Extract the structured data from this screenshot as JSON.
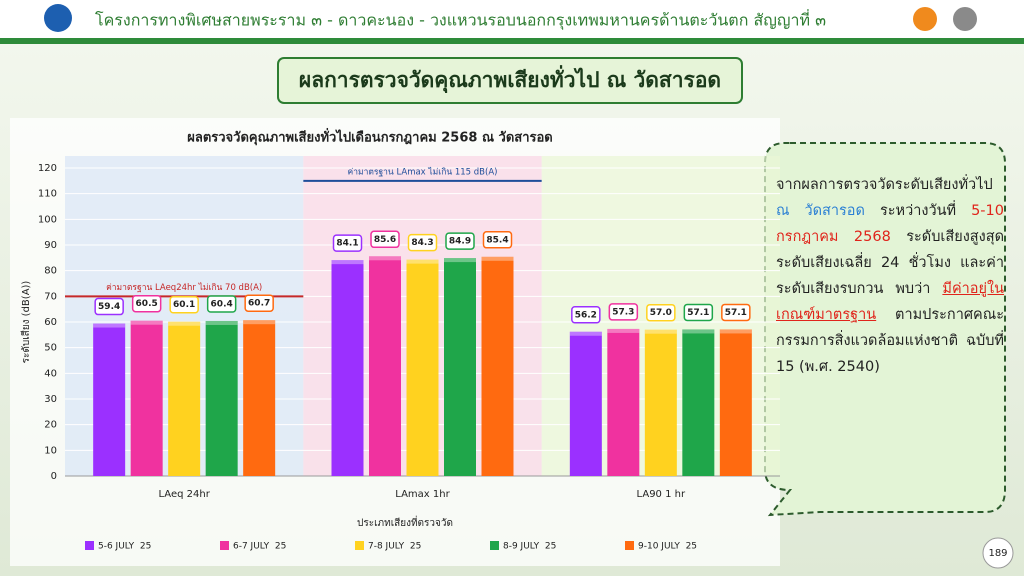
{
  "header": {
    "title": "โครงการทางพิเศษสายพระราม ๓ - ดาวคะนอง - วงแหวนรอบนอกกรุงเทพมหานครด้านตะวันตก สัญญาที่ ๓",
    "heading": "ผลการตรวจวัดคุณภาพเสียงทั่วไป ณ วัดสารอด"
  },
  "chart_data": {
    "type": "bar",
    "title": "ผลตรวจวัดคุณภาพเสียงทั่วไปเดือนกรกฎาคม 2568 ณ วัดสารอด",
    "xlabel": "ประเภทเสียงที่ตรวจวัด",
    "ylabel": "ระดับเสียง (dB(A))",
    "categories": [
      "LAeq 24hr",
      "LAmax 1hr",
      "LA90 1 hr"
    ],
    "series": [
      {
        "name": "5-6 JULY  25",
        "color": "#9b30ff",
        "values": [
          59.4,
          84.1,
          56.2
        ]
      },
      {
        "name": "6-7 JULY  25",
        "color": "#f0329f",
        "values": [
          60.5,
          85.6,
          57.3
        ]
      },
      {
        "name": "7-8 JULY  25",
        "color": "#ffd21f",
        "values": [
          60.1,
          84.3,
          57.0
        ],
        "value_labels": [
          "60.1",
          "84.3",
          "57.0"
        ]
      },
      {
        "name": "8-9 JULY  25",
        "color": "#1fa64a",
        "values": [
          60.4,
          84.9,
          57.1
        ]
      },
      {
        "name": "9-10 JULY  25",
        "color": "#ff6a10",
        "values": [
          60.7,
          85.4,
          57.1
        ]
      }
    ],
    "limits": [
      {
        "label": "ค่ามาตรฐาน LAeq24hr ไม่เกิน 70 dB(A)",
        "value": 70,
        "color": "#c62828"
      },
      {
        "label": "ค่ามาตรฐาน LAmax ไม่เกิน 115 dB(A)",
        "value": 115,
        "color": "#1f4e9a"
      },
      null
    ],
    "ylim": [
      0,
      120
    ],
    "yticks": [
      0,
      10,
      20,
      30,
      40,
      50,
      60,
      70,
      80,
      90,
      100,
      110,
      120
    ]
  },
  "callout": [
    "จากผลการตรวจวัดระดับเสียงทั่วไป ",
    "ณ วัดสารอด",
    " ระหว่างวันที่ ",
    "5-10 กรกฎาคม 2568",
    " ระดับเสียงสูงสุด ระดับเสียงเฉลี่ย 24 ชั่วโมง และค่าระดับเสียงรบกวน พบว่า ",
    "มีค่าอยู่ในเกณฑ์มาตรฐาน",
    " ตามประกาศคณะกรรมการสิ่งแวดล้อมแห่งชาติ ฉบับที่ 15 (พ.ศ. 2540)"
  ],
  "page_number": "189"
}
